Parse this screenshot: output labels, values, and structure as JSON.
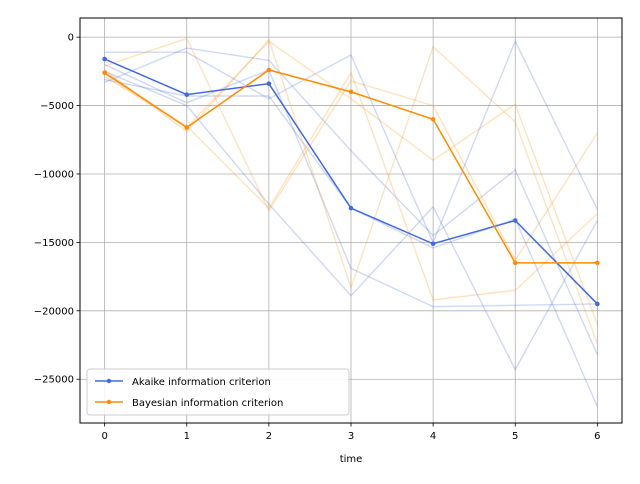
{
  "chart_data": {
    "type": "line",
    "xlabel": "time",
    "ylabel": "",
    "title": "",
    "xlim": [
      -0.3,
      6.3
    ],
    "ylim": [
      -28200,
      1400
    ],
    "x_ticks": [
      0,
      1,
      2,
      3,
      4,
      5,
      6
    ],
    "y_ticks": [
      0,
      -5000,
      -10000,
      -15000,
      -20000,
      -25000
    ],
    "x": [
      0,
      1,
      2,
      3,
      4,
      5,
      6
    ],
    "grid": true,
    "legend_position": "lower-left",
    "series": [
      {
        "name": "Akaike information criterion",
        "color": "#4169e1",
        "values": [
          -1600,
          -4200,
          -3400,
          -12500,
          -15100,
          -13400,
          -19500
        ]
      },
      {
        "name": "Bayesian information criterion",
        "color": "#ff8c00",
        "values": [
          -2600,
          -6600,
          -2400,
          -4000,
          -6000,
          -16500,
          -16500
        ]
      }
    ],
    "background_series": [
      {
        "group": "Akaike information criterion",
        "values": [
          -1100,
          -1100,
          -4500,
          -1300,
          -15000,
          -300,
          -12600
        ]
      },
      {
        "group": "Akaike information criterion",
        "values": [
          -3300,
          -800,
          -1700,
          -8300,
          -14500,
          -9700,
          -23200
        ]
      },
      {
        "group": "Akaike information criterion",
        "values": [
          -2500,
          -5000,
          -12200,
          -18900,
          -12400,
          -24300,
          -13400
        ]
      },
      {
        "group": "Akaike information criterion",
        "values": [
          -2000,
          -4800,
          -2400,
          -16900,
          -19700,
          -19600,
          -19500
        ]
      },
      {
        "group": "Akaike information criterion",
        "values": [
          -3100,
          -4300,
          -4300,
          -12500,
          -15400,
          -13300,
          -27000
        ]
      },
      {
        "group": "Bayesian information criterion",
        "values": [
          -2100,
          -100,
          -12700,
          -3200,
          -5000,
          -16300,
          -7000
        ]
      },
      {
        "group": "Bayesian information criterion",
        "values": [
          -2400,
          -6900,
          -200,
          -18300,
          -700,
          -6200,
          -22400
        ]
      },
      {
        "group": "Bayesian information criterion",
        "values": [
          -2900,
          -6500,
          -12500,
          -2600,
          -19200,
          -18500,
          -12900
        ]
      },
      {
        "group": "Bayesian information criterion",
        "values": [
          -2700,
          -6600,
          -300,
          -4500,
          -9000,
          -4900,
          -21000
        ]
      }
    ]
  }
}
